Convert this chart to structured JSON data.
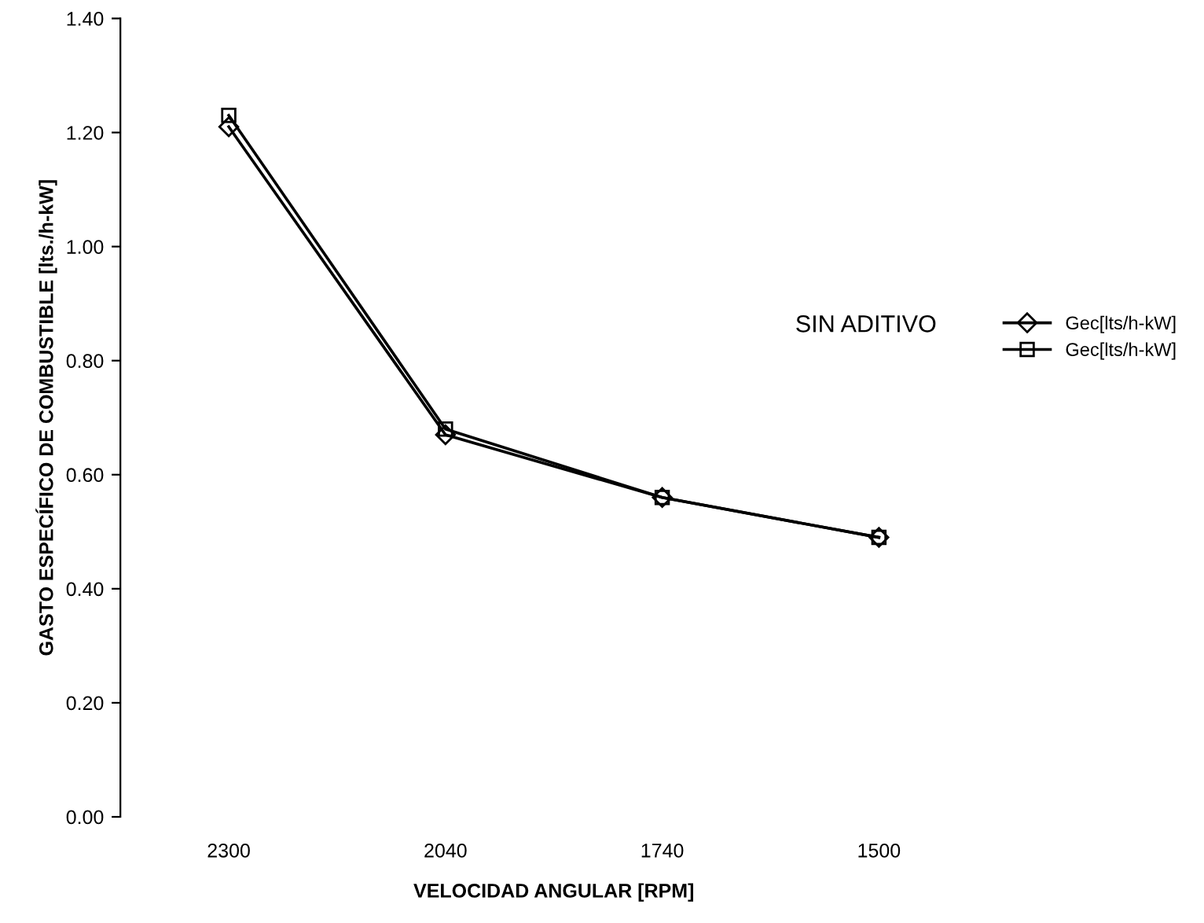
{
  "chart_data": {
    "type": "line",
    "xlabel": "VELOCIDAD ANGULAR [RPM]",
    "ylabel": "GASTO ESPECÍFICO DE COMBUSTIBLE [lts./h-kW]",
    "categories": [
      "2300",
      "2040",
      "1740",
      "1500"
    ],
    "series": [
      {
        "name": "Gec[lts/h-kW]",
        "color": "#000000",
        "marker": "diamond",
        "values": [
          1.21,
          0.67,
          0.56,
          0.49
        ]
      },
      {
        "name": "Gec[lts/h-kW]",
        "color": "#000000",
        "marker": "square",
        "values": [
          1.23,
          0.68,
          0.56,
          0.49
        ]
      }
    ],
    "ylim": [
      0,
      1.4
    ],
    "yticks": [
      {
        "value": 0,
        "label": "0.00"
      },
      {
        "value": 0.2,
        "label": "0.20"
      },
      {
        "value": 0.4,
        "label": "0.40"
      },
      {
        "value": 0.6,
        "label": "0.60"
      },
      {
        "value": 0.8,
        "label": "0.80"
      },
      {
        "value": 1.0,
        "label": "1.00"
      },
      {
        "value": 1.2,
        "label": "1.20"
      },
      {
        "value": 1.4,
        "label": "1.40"
      }
    ],
    "annotations": [
      "SIN ADITIVO"
    ],
    "legend": "top right",
    "line_style": "solid",
    "grid": false
  }
}
